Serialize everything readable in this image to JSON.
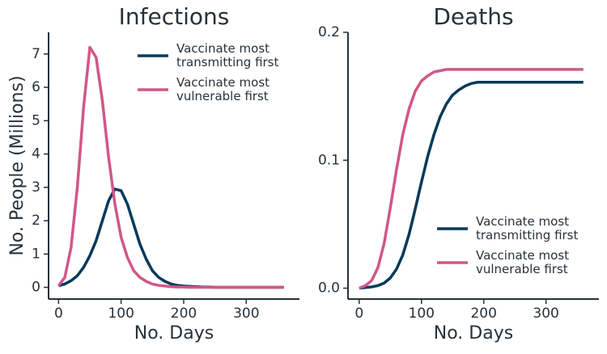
{
  "chart_data": [
    {
      "type": "line",
      "title": "Infections",
      "xlabel": "No. Days",
      "ylabel": "No. People (Millions)",
      "x": [
        0,
        10,
        20,
        30,
        40,
        50,
        60,
        70,
        80,
        90,
        100,
        110,
        120,
        130,
        140,
        150,
        160,
        170,
        180,
        190,
        200,
        210,
        220,
        230,
        240,
        250,
        260,
        270,
        280,
        290,
        300,
        310,
        320,
        330,
        340,
        350,
        360
      ],
      "series": [
        {
          "name": "Vaccinate most transmitting first",
          "color": "#06395a",
          "values": [
            0.05,
            0.1,
            0.2,
            0.35,
            0.6,
            0.95,
            1.4,
            2.0,
            2.6,
            2.95,
            2.9,
            2.5,
            1.9,
            1.3,
            0.85,
            0.5,
            0.3,
            0.18,
            0.1,
            0.06,
            0.04,
            0.03,
            0.02,
            0.01,
            0.01,
            0,
            0,
            0,
            0,
            0,
            0,
            0,
            0,
            0,
            0,
            0,
            0
          ]
        },
        {
          "name": "Vaccinate most vulnerable first",
          "color": "#d0578a",
          "values": [
            0.05,
            0.3,
            1.2,
            3.0,
            5.4,
            7.2,
            6.9,
            5.6,
            3.9,
            2.5,
            1.5,
            0.9,
            0.5,
            0.3,
            0.18,
            0.1,
            0.06,
            0.04,
            0.02,
            0.01,
            0.01,
            0,
            0,
            0,
            0,
            0,
            0,
            0,
            0,
            0,
            0,
            0,
            0,
            0,
            0,
            0,
            0
          ]
        }
      ],
      "xlim": [
        -16,
        385
      ],
      "ylim": [
        -0.35,
        7.65
      ],
      "xticks": [
        0,
        100,
        200,
        300
      ],
      "yticks": [
        0,
        1,
        2,
        3,
        4,
        5,
        6,
        7
      ],
      "legend": "upper right"
    },
    {
      "type": "line",
      "title": "Deaths",
      "xlabel": "No. Days",
      "x": [
        0,
        10,
        20,
        30,
        40,
        50,
        60,
        70,
        80,
        90,
        100,
        110,
        120,
        130,
        140,
        150,
        160,
        170,
        180,
        190,
        200,
        210,
        220,
        230,
        240,
        250,
        260,
        270,
        280,
        290,
        300,
        310,
        320,
        330,
        340,
        350,
        360
      ],
      "series": [
        {
          "name": "Vaccinate most transmitting first",
          "color": "#06395a",
          "values": [
            0,
            0.0005,
            0.001,
            0.002,
            0.004,
            0.008,
            0.015,
            0.026,
            0.042,
            0.062,
            0.083,
            0.103,
            0.12,
            0.134,
            0.144,
            0.151,
            0.155,
            0.158,
            0.16,
            0.161,
            0.161,
            0.161,
            0.161,
            0.161,
            0.161,
            0.161,
            0.161,
            0.161,
            0.161,
            0.161,
            0.161,
            0.161,
            0.161,
            0.161,
            0.161,
            0.161,
            0.161
          ]
        },
        {
          "name": "Vaccinate most vulnerable first",
          "color": "#d0578a",
          "values": [
            0,
            0.002,
            0.006,
            0.016,
            0.035,
            0.063,
            0.093,
            0.12,
            0.14,
            0.154,
            0.162,
            0.166,
            0.169,
            0.17,
            0.171,
            0.171,
            0.171,
            0.171,
            0.171,
            0.171,
            0.171,
            0.171,
            0.171,
            0.171,
            0.171,
            0.171,
            0.171,
            0.171,
            0.171,
            0.171,
            0.171,
            0.171,
            0.171,
            0.171,
            0.171,
            0.171,
            0.171
          ]
        }
      ],
      "xlim": [
        -18,
        385
      ],
      "ylim": [
        -0.0085,
        0.2
      ],
      "xticks": [
        0,
        100,
        200,
        300
      ],
      "yticks": [
        {
          "value": 0,
          "label": "0.0"
        },
        0.1,
        0.2
      ],
      "legend": "lower right"
    }
  ]
}
